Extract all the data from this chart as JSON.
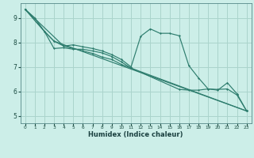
{
  "background_color": "#cceee8",
  "grid_color": "#aad4cc",
  "line_color": "#2e7d6e",
  "xlabel": "Humidex (Indice chaleur)",
  "xlim": [
    -0.5,
    23.5
  ],
  "ylim": [
    4.7,
    9.6
  ],
  "yticks": [
    5,
    6,
    7,
    8,
    9
  ],
  "xticks": [
    0,
    1,
    2,
    3,
    4,
    5,
    6,
    7,
    8,
    9,
    10,
    11,
    12,
    13,
    14,
    15,
    16,
    17,
    18,
    19,
    20,
    21,
    22,
    23
  ],
  "series": [
    {
      "x": [
        0,
        1,
        2,
        3,
        4,
        5,
        6,
        7,
        8,
        9,
        10,
        11,
        12,
        13,
        14,
        15,
        16,
        17,
        18,
        19,
        20,
        21,
        22,
        23
      ],
      "y": [
        9.35,
        9.0,
        8.45,
        8.05,
        7.85,
        7.9,
        7.82,
        7.75,
        7.65,
        7.5,
        7.3,
        7.0,
        8.25,
        8.55,
        8.37,
        8.37,
        8.27,
        7.05,
        6.55,
        6.1,
        6.05,
        6.35,
        5.9,
        5.2
      ]
    },
    {
      "x": [
        0,
        2,
        3,
        4,
        5,
        6,
        7,
        8,
        9,
        10,
        11,
        16,
        17,
        18,
        19,
        20,
        21,
        22,
        23
      ],
      "y": [
        9.35,
        8.45,
        7.75,
        7.78,
        7.72,
        7.72,
        7.65,
        7.57,
        7.42,
        7.2,
        6.95,
        6.08,
        6.05,
        6.05,
        6.1,
        6.08,
        6.1,
        5.85,
        5.2
      ]
    },
    {
      "x": [
        0,
        2,
        3,
        23
      ],
      "y": [
        9.35,
        8.45,
        8.05,
        5.2
      ]
    },
    {
      "x": [
        0,
        4,
        5,
        6,
        7,
        8,
        9,
        10,
        11,
        23
      ],
      "y": [
        9.35,
        7.85,
        7.75,
        7.65,
        7.55,
        7.4,
        7.3,
        7.1,
        6.95,
        5.2
      ]
    }
  ]
}
